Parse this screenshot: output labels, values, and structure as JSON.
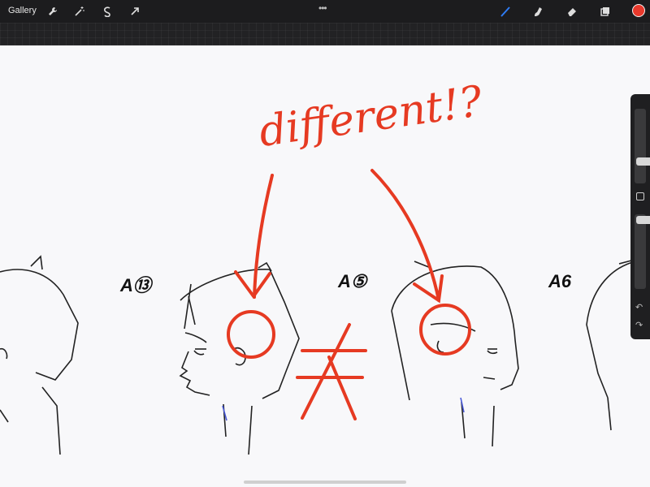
{
  "toolbar": {
    "gallery_label": "Gallery",
    "left_tools": [
      "wrench-icon",
      "magic-wand-icon",
      "selection-icon",
      "transform-icon"
    ],
    "right_tools": [
      "brush-icon",
      "smudge-icon",
      "eraser-icon",
      "layers-icon",
      "color-swatch"
    ],
    "menu_dots": "•••",
    "active_color": "#e8392c",
    "active_tool_color": "#2e7cf6"
  },
  "sidebar": {
    "size_level": 0.55,
    "opacity_level": 0.35,
    "undo_icon": "↶",
    "redo_icon": "↷"
  },
  "canvas": {
    "labels": {
      "a13": "A⑬",
      "a5": "A⑤",
      "a6": "A6"
    },
    "annotation_text": "different!?",
    "not_equal": "≠"
  }
}
